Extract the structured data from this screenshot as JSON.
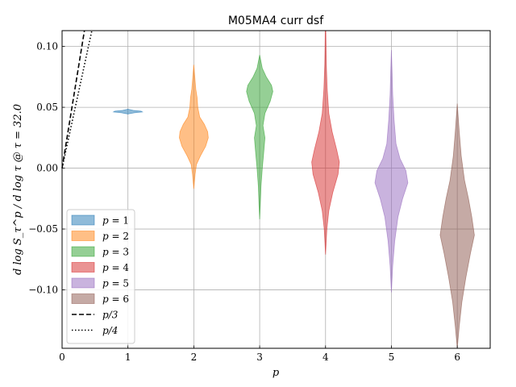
{
  "chart_data": {
    "type": "violin",
    "title": "M05MA4 curr dsf",
    "xlabel": "p",
    "ylabel": "d log S_τ^p / d log τ @ τ = 32.0",
    "xlim": [
      0,
      6.5
    ],
    "ylim": [
      -0.148,
      0.113
    ],
    "x_ticks": [
      {
        "value": 0,
        "label": "0"
      },
      {
        "value": 1,
        "label": "1"
      },
      {
        "value": 2,
        "label": "2"
      },
      {
        "value": 3,
        "label": "3"
      },
      {
        "value": 4,
        "label": "4"
      },
      {
        "value": 5,
        "label": "5"
      },
      {
        "value": 6,
        "label": "6"
      }
    ],
    "y_ticks": [
      {
        "value": 0.1,
        "label": "0.10"
      },
      {
        "value": 0.05,
        "label": "0.05"
      },
      {
        "value": 0.0,
        "label": "0.00"
      },
      {
        "value": -0.05,
        "label": "−0.05"
      },
      {
        "value": -0.1,
        "label": "−0.10"
      }
    ],
    "grid": true,
    "legend_position": "lower-left",
    "series": [
      {
        "name": "p = 1",
        "legend_var": "p",
        "legend_val": "1",
        "p": 1,
        "color": "#1f77b4",
        "ymin": 0.0445,
        "ymax": 0.0485,
        "profile": [
          [
            0.0445,
            0.0
          ],
          [
            0.0455,
            0.1
          ],
          [
            0.0462,
            0.22
          ],
          [
            0.0468,
            0.2
          ],
          [
            0.0475,
            0.08
          ],
          [
            0.0485,
            0.0
          ]
        ]
      },
      {
        "name": "p = 2",
        "legend_var": "p",
        "legend_val": "2",
        "p": 2,
        "color": "#ff7f0e",
        "ymin": -0.017,
        "ymax": 0.085,
        "profile": [
          [
            -0.017,
            0.0
          ],
          [
            -0.005,
            0.02
          ],
          [
            0.003,
            0.04
          ],
          [
            0.01,
            0.1
          ],
          [
            0.018,
            0.18
          ],
          [
            0.025,
            0.22
          ],
          [
            0.03,
            0.21
          ],
          [
            0.036,
            0.16
          ],
          [
            0.042,
            0.09
          ],
          [
            0.05,
            0.06
          ],
          [
            0.058,
            0.05
          ],
          [
            0.065,
            0.03
          ],
          [
            0.075,
            0.015
          ],
          [
            0.085,
            0.0
          ]
        ]
      },
      {
        "name": "p = 3",
        "legend_var": "p",
        "legend_val": "3",
        "p": 3,
        "color": "#2ca02c",
        "ymin": -0.042,
        "ymax": 0.093,
        "profile": [
          [
            -0.042,
            0.0
          ],
          [
            -0.03,
            0.01
          ],
          [
            -0.015,
            0.02
          ],
          [
            0.0,
            0.04
          ],
          [
            0.012,
            0.06
          ],
          [
            0.025,
            0.08
          ],
          [
            0.035,
            0.05
          ],
          [
            0.045,
            0.08
          ],
          [
            0.055,
            0.16
          ],
          [
            0.063,
            0.2
          ],
          [
            0.068,
            0.18
          ],
          [
            0.075,
            0.1
          ],
          [
            0.082,
            0.04
          ],
          [
            0.093,
            0.0
          ]
        ]
      },
      {
        "name": "p = 4",
        "legend_var": "p",
        "legend_val": "4",
        "p": 4,
        "color": "#d62728",
        "ymin": -0.071,
        "ymax": 0.113,
        "profile": [
          [
            -0.071,
            0.0
          ],
          [
            -0.05,
            0.02
          ],
          [
            -0.035,
            0.05
          ],
          [
            -0.02,
            0.11
          ],
          [
            -0.005,
            0.19
          ],
          [
            0.005,
            0.21
          ],
          [
            0.015,
            0.17
          ],
          [
            0.03,
            0.1
          ],
          [
            0.045,
            0.05
          ],
          [
            0.065,
            0.025
          ],
          [
            0.085,
            0.012
          ],
          [
            0.113,
            0.004
          ]
        ]
      },
      {
        "name": "p = 5",
        "legend_var": "p",
        "legend_val": "5",
        "p": 5,
        "color": "#9467bd",
        "ymin": -0.102,
        "ymax": 0.097,
        "profile": [
          [
            -0.102,
            0.0
          ],
          [
            -0.08,
            0.02
          ],
          [
            -0.06,
            0.05
          ],
          [
            -0.04,
            0.1
          ],
          [
            -0.025,
            0.17
          ],
          [
            -0.012,
            0.25
          ],
          [
            -0.002,
            0.22
          ],
          [
            0.008,
            0.13
          ],
          [
            0.02,
            0.07
          ],
          [
            0.04,
            0.04
          ],
          [
            0.06,
            0.02
          ],
          [
            0.08,
            0.01
          ],
          [
            0.097,
            0.0
          ]
        ]
      },
      {
        "name": "p = 6",
        "legend_var": "p",
        "legend_val": "6",
        "p": 6,
        "color": "#8c564b",
        "ymin": -0.148,
        "ymax": 0.053,
        "profile": [
          [
            -0.148,
            0.0
          ],
          [
            -0.13,
            0.03
          ],
          [
            -0.11,
            0.07
          ],
          [
            -0.09,
            0.13
          ],
          [
            -0.07,
            0.2
          ],
          [
            -0.055,
            0.26
          ],
          [
            -0.04,
            0.22
          ],
          [
            -0.025,
            0.17
          ],
          [
            -0.01,
            0.11
          ],
          [
            0.01,
            0.06
          ],
          [
            0.03,
            0.03
          ],
          [
            0.053,
            0.0
          ]
        ]
      }
    ],
    "reference_lines": [
      {
        "name": "p/3",
        "label": "p/3",
        "slope": 0.3333,
        "dash": "dashed"
      },
      {
        "name": "p/4",
        "label": "p/4",
        "slope": 0.25,
        "dash": "dotted"
      }
    ]
  }
}
